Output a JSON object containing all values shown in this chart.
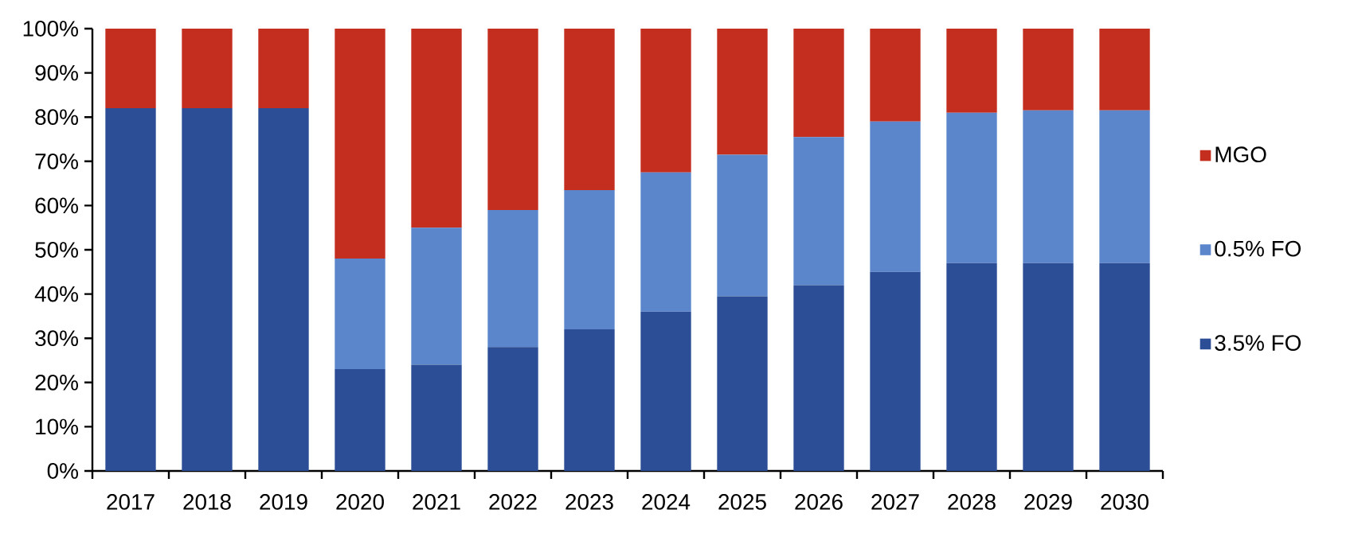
{
  "chart_data": {
    "type": "bar",
    "stacked": true,
    "categories": [
      "2017",
      "2018",
      "2019",
      "2020",
      "2021",
      "2022",
      "2023",
      "2024",
      "2025",
      "2026",
      "2027",
      "2028",
      "2029",
      "2030"
    ],
    "series": [
      {
        "name": "3.5% FO",
        "color": "#2b4e96",
        "values": [
          82,
          82,
          82,
          23,
          24,
          28,
          32,
          36,
          39.5,
          42,
          45,
          47,
          47,
          47
        ]
      },
      {
        "name": "0.5% FO",
        "color": "#5b86cc",
        "values": [
          0,
          0,
          0,
          25,
          31,
          31,
          31.5,
          31.5,
          32,
          33.5,
          34,
          34,
          34.5,
          34.5
        ]
      },
      {
        "name": "MGO",
        "color": "#c42e1f",
        "values": [
          18,
          18,
          18,
          52,
          45,
          41,
          36.5,
          32.5,
          28.5,
          24.5,
          21,
          19,
          18.5,
          18.5
        ]
      }
    ],
    "ylim": [
      0,
      100
    ],
    "yticks": [
      {
        "value": 0,
        "label": "0%"
      },
      {
        "value": 10,
        "label": "10%"
      },
      {
        "value": 20,
        "label": "20%"
      },
      {
        "value": 30,
        "label": "30%"
      },
      {
        "value": 40,
        "label": "40%"
      },
      {
        "value": 50,
        "label": "50%"
      },
      {
        "value": 60,
        "label": "60%"
      },
      {
        "value": 70,
        "label": "70%"
      },
      {
        "value": 80,
        "label": "80%"
      },
      {
        "value": 90,
        "label": "90%"
      },
      {
        "value": 100,
        "label": "100%"
      }
    ],
    "legend": "right",
    "grid": false
  }
}
